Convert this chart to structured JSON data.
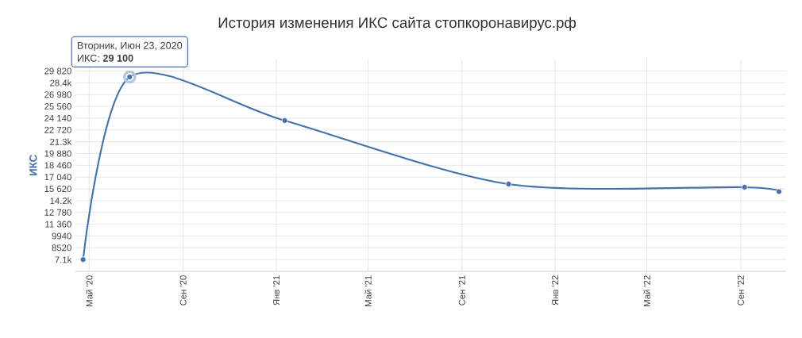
{
  "chart_data": {
    "type": "line",
    "title": "История изменения ИКС сайта стопкоронавирус.рф",
    "ylabel": "ИКС",
    "x": [
      "2020-04-23",
      "2020-06-23",
      "2021-01-12",
      "2021-11-01",
      "2022-09-06",
      "2022-10-21"
    ],
    "series": [
      {
        "color": "#4572a7",
        "values": [
          7100,
          29100,
          23850,
          16200,
          15820,
          15290
        ]
      }
    ],
    "xlim": [
      "2020-04-13",
      "2022-10-30"
    ],
    "xticks": [
      {
        "value": "2020-05-01",
        "label": "Май '20"
      },
      {
        "value": "2020-09-01",
        "label": "Сен '20"
      },
      {
        "value": "2021-01-01",
        "label": "Янв '21"
      },
      {
        "value": "2021-05-01",
        "label": "Май '21"
      },
      {
        "value": "2021-09-01",
        "label": "Сен '21"
      },
      {
        "value": "2022-01-01",
        "label": "Янв '22"
      },
      {
        "value": "2022-05-01",
        "label": "Май '22"
      },
      {
        "value": "2022-09-01",
        "label": "Сен '22"
      }
    ],
    "ylim": [
      5680,
      31240
    ],
    "yticks": [
      {
        "value": 7100,
        "label": "7.1k"
      },
      8520,
      9940,
      {
        "value": 11360,
        "label": "11 360"
      },
      {
        "value": 12780,
        "label": "12 780"
      },
      {
        "value": 14200,
        "label": "14.2k"
      },
      {
        "value": 15620,
        "label": "15 620"
      },
      {
        "value": 17040,
        "label": "17 040"
      },
      {
        "value": 18460,
        "label": "18 460"
      },
      {
        "value": 19880,
        "label": "19 880"
      },
      {
        "value": 21300,
        "label": "21.3k"
      },
      {
        "value": 22720,
        "label": "22 720"
      },
      {
        "value": 24140,
        "label": "24 140"
      },
      {
        "value": 25560,
        "label": "25 560"
      },
      {
        "value": 26980,
        "label": "26 980"
      },
      {
        "value": 28400,
        "label": "28.4k"
      },
      {
        "value": 29820,
        "label": "29 820"
      }
    ],
    "grid": true,
    "marker": "circle",
    "line_style": "solid",
    "annotations": [
      {
        "text": "Вторник, Июн 23, 2020",
        "x": "2020-06-23",
        "y": 29100
      },
      {
        "text": "ИКС: **29 100**",
        "x": "2020-06-23",
        "y": 29100
      }
    ]
  }
}
